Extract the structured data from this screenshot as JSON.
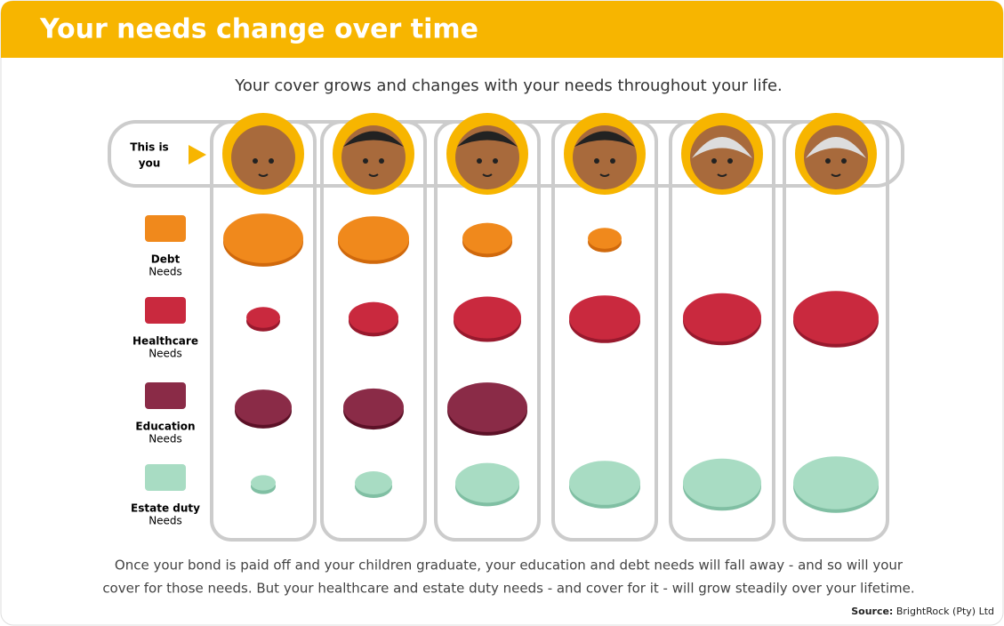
{
  "header": {
    "title": "Your needs change over time"
  },
  "subtitle": "Your cover grows and changes with your needs throughout your life.",
  "marker": {
    "line1": "This is",
    "line2": "you"
  },
  "rows": [
    {
      "name": "Debt",
      "sub": "Needs"
    },
    {
      "name": "Healthcare",
      "sub": "Needs"
    },
    {
      "name": "Education",
      "sub": "Needs"
    },
    {
      "name": "Estate duty",
      "sub": "Needs"
    }
  ],
  "footer": {
    "line1": "Once your bond is paid off and your children graduate, your education and debt needs will fall away - and so will your",
    "line2": "cover for those needs. But your healthcare and estate duty needs - and cover for it - will grow steadily over your lifetime.",
    "source_label": "Source:",
    "source": "BrightRock (Pty) Ltd"
  }
}
